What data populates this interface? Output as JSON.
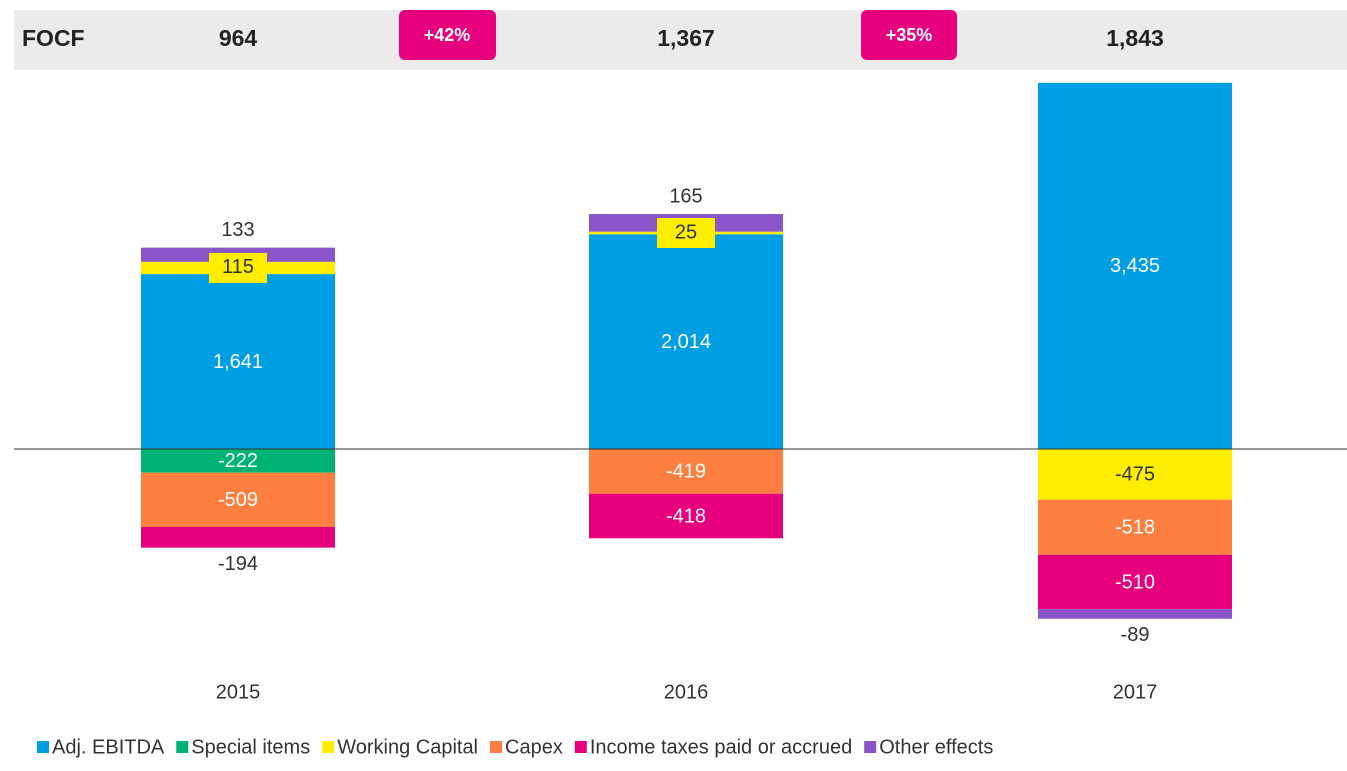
{
  "header": {
    "label": "FOCF",
    "values": [
      "964",
      "1,367",
      "1,843"
    ],
    "growth": [
      "+42%",
      "+35%"
    ]
  },
  "chart_data": {
    "type": "stacked_bar",
    "categories": [
      "2015",
      "2016",
      "2017"
    ],
    "ylim": [
      -1600,
      3500
    ],
    "series": [
      {
        "name": "Adj. EBITDA",
        "color": "#009fe3",
        "values": [
          1641,
          2014,
          3435
        ],
        "value_labels": [
          "1,641",
          "2,014",
          "3,435"
        ]
      },
      {
        "name": "Special items",
        "color": "#00b274",
        "values": [
          -222,
          null,
          null
        ]
      },
      {
        "name": "Working Capital",
        "color": "#ffed00",
        "values": [
          115,
          25,
          -475
        ]
      },
      {
        "name": "Capex",
        "color": "#ff7f41",
        "values": [
          -509,
          -419,
          -518
        ]
      },
      {
        "name": "Income taxes paid or accrued",
        "color": "#e6007e",
        "values": [
          -194,
          -418,
          -510
        ]
      },
      {
        "name": "Other effects",
        "color": "#8a55c8",
        "values": [
          133,
          165,
          -89
        ]
      }
    ]
  }
}
